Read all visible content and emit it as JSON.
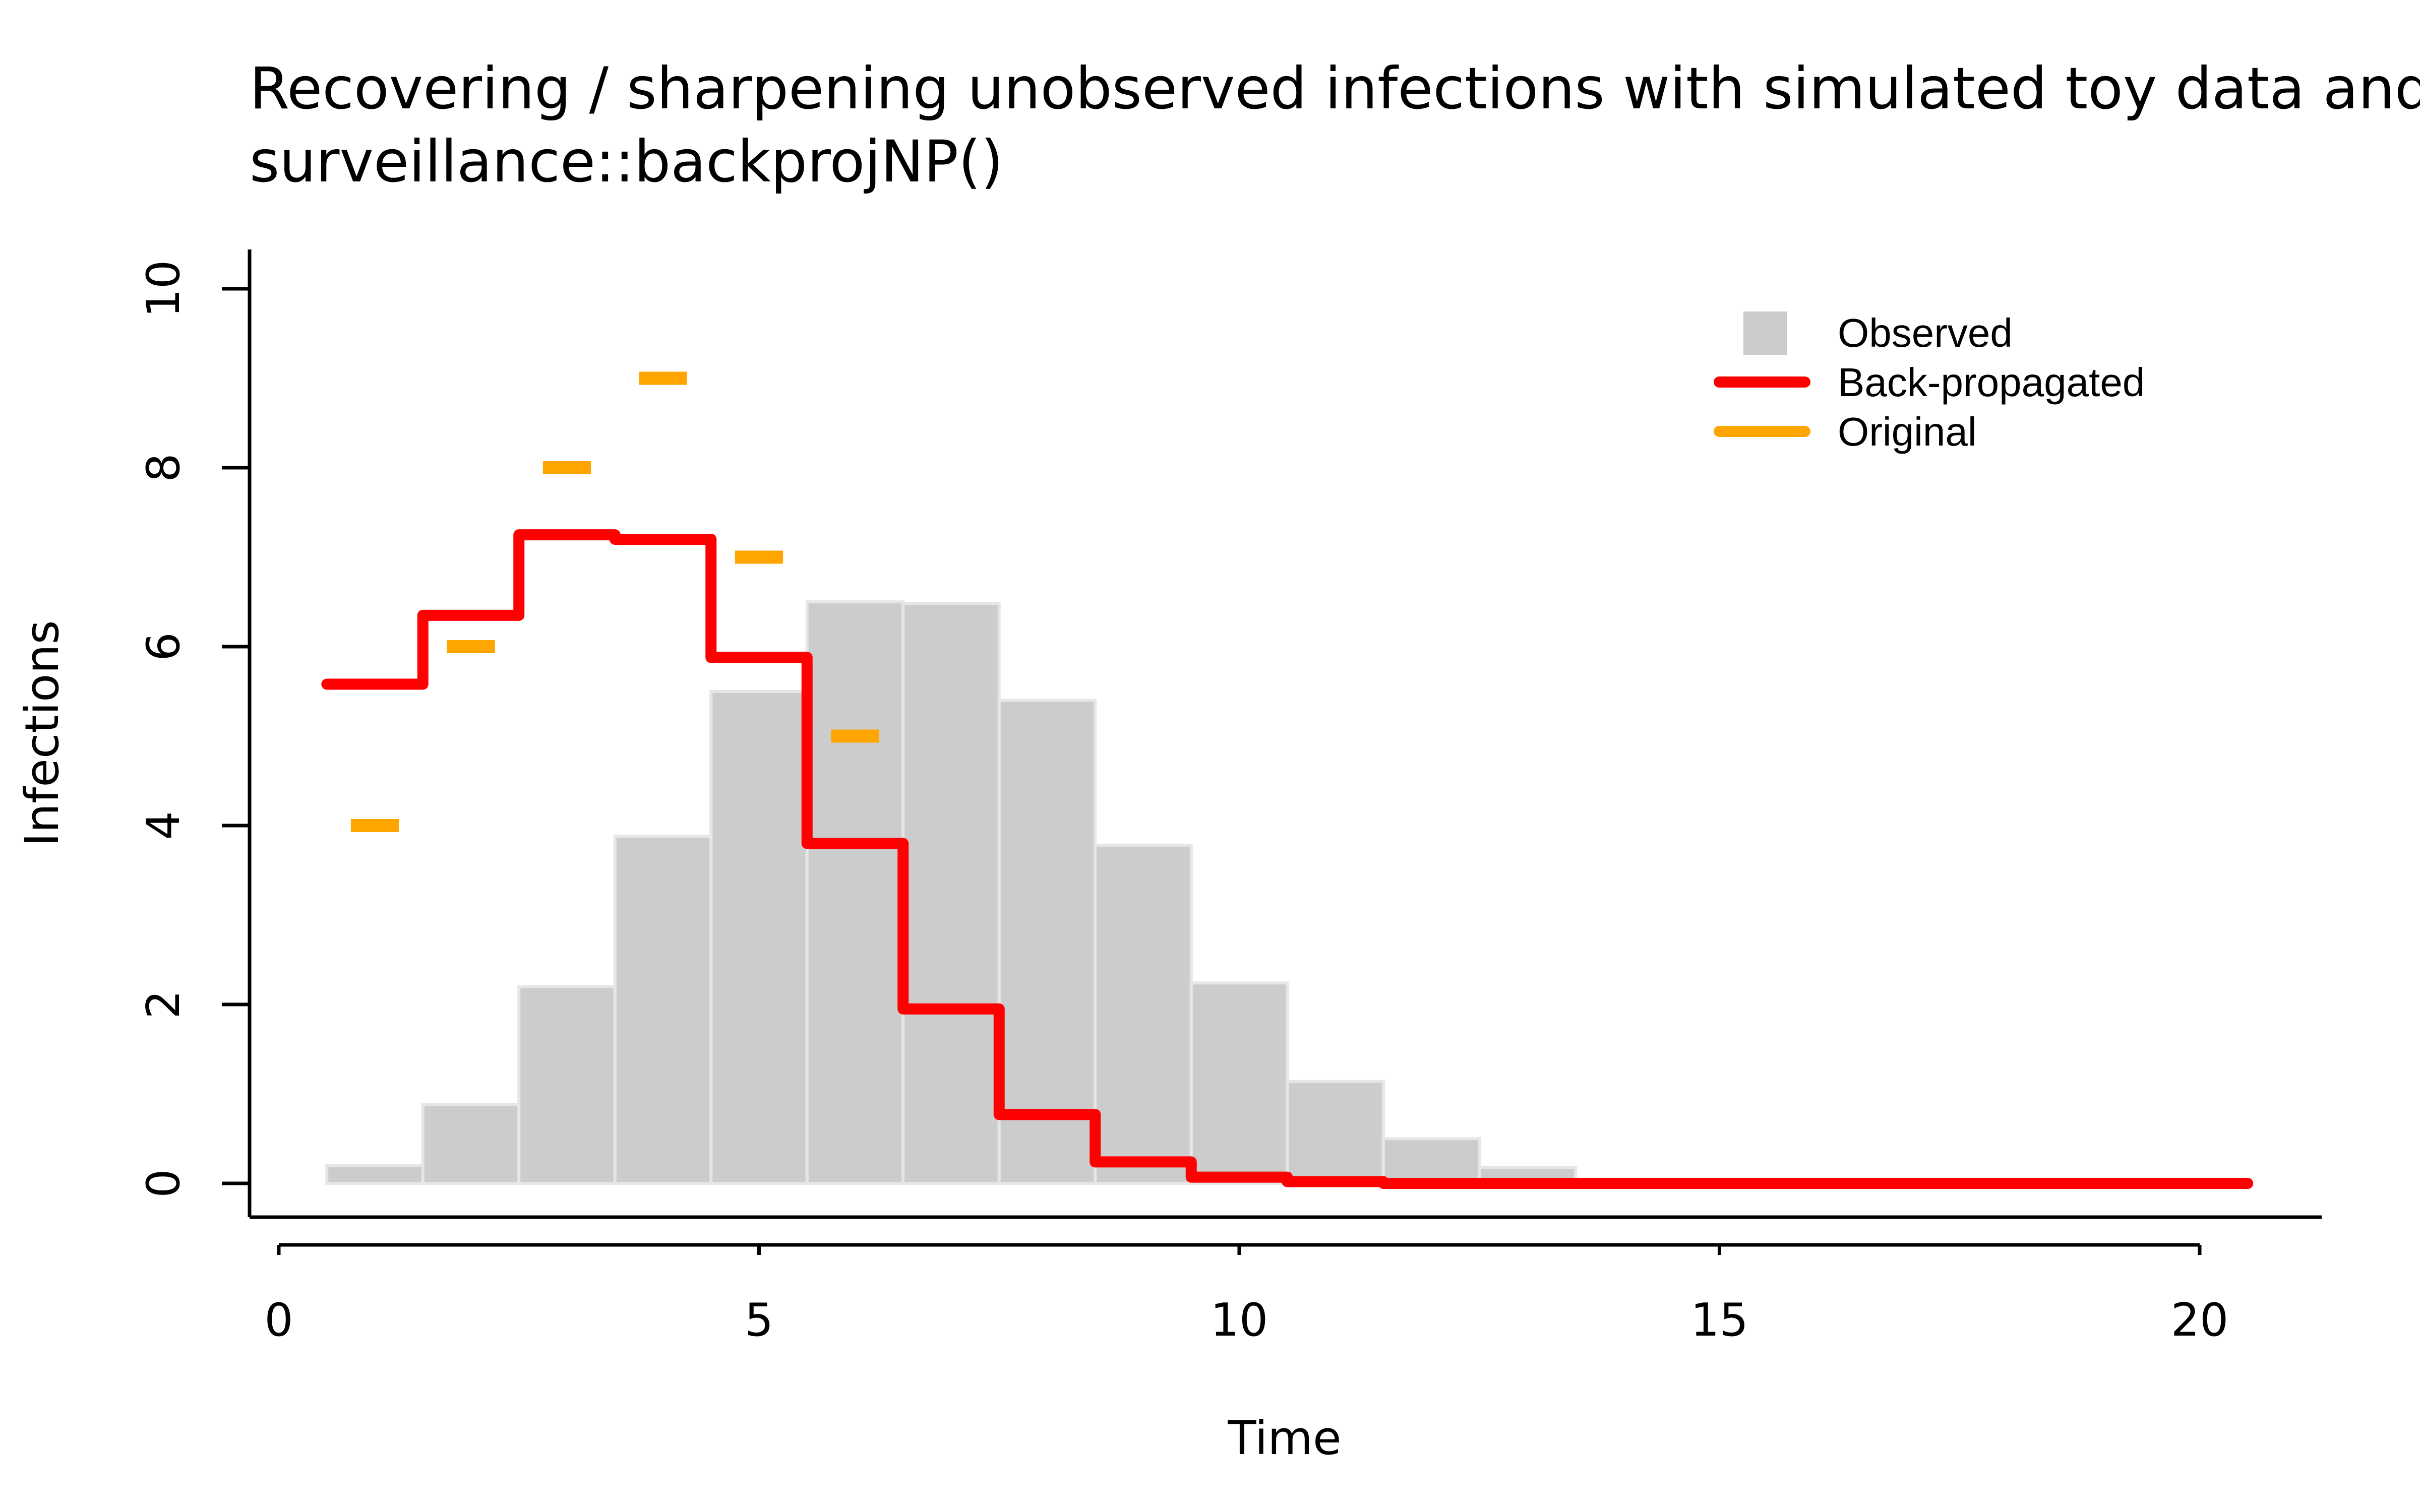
{
  "chart_data": {
    "type": "bar",
    "title": "Recovering / sharpening unobserved infections with simulated toy data and surveillance::backprojNP()",
    "title_lines": [
      "Recovering / sharpening unobserved infections with simulated toy data and",
      "surveillance::backprojNP()"
    ],
    "xlabel": "Time",
    "ylabel": "Infections",
    "xlim": [
      0,
      21
    ],
    "ylim": [
      0,
      10
    ],
    "x_ticks": [
      0,
      5,
      10,
      15,
      20
    ],
    "y_ticks": [
      0,
      2,
      4,
      6,
      8,
      10
    ],
    "grid": false,
    "legend_position": "top-right",
    "series": [
      {
        "name": "Observed",
        "kind": "bar",
        "color": "#cccccc",
        "x": [
          1,
          2,
          3,
          4,
          5,
          6,
          7,
          8,
          9,
          10,
          11,
          12,
          13
        ],
        "values": [
          0.2,
          0.88,
          2.2,
          3.88,
          5.5,
          6.5,
          6.48,
          5.4,
          3.78,
          2.24,
          1.14,
          0.5,
          0.18
        ]
      },
      {
        "name": "Back-propagated",
        "kind": "step",
        "color": "#ff0000",
        "x": [
          1,
          2,
          3,
          4,
          5,
          6,
          7,
          8,
          9,
          10,
          11,
          12,
          13,
          14,
          15,
          16,
          17,
          18,
          19,
          20
        ],
        "values": [
          5.58,
          6.35,
          7.25,
          7.2,
          5.88,
          3.8,
          1.95,
          0.77,
          0.24,
          0.07,
          0.02,
          0.0,
          0.0,
          0.0,
          0.0,
          0.0,
          0.0,
          0.0,
          0.0,
          0.0
        ]
      },
      {
        "name": "Original",
        "kind": "segment",
        "color": "#ffa500",
        "x": [
          1,
          2,
          3,
          4,
          5,
          6
        ],
        "values": [
          4,
          6,
          8,
          9,
          7,
          5
        ]
      }
    ]
  }
}
